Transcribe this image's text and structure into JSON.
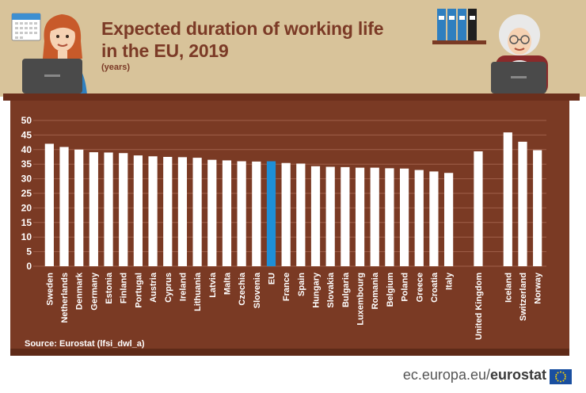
{
  "header": {
    "title": "Expected duration of working life in the EU, 2019",
    "subtitle": "(years)"
  },
  "source": "Source: Eurostat (lfsi_dwl_a)",
  "footer": {
    "site": "ec.europa.eu/",
    "brand": "eurostat"
  },
  "colors": {
    "bar": "#ffffff",
    "highlight": "#1e8fd6",
    "grid": "#a0604a",
    "axis_text": "#ffffff",
    "title": "#7b3a26"
  },
  "chart_data": {
    "type": "bar",
    "title": "Expected duration of working life in the EU, 2019",
    "ylabel": "(years)",
    "xlabel": "",
    "ylim": [
      0,
      50
    ],
    "yticks": [
      0,
      5,
      10,
      15,
      20,
      25,
      30,
      35,
      40,
      45,
      50
    ],
    "grid": true,
    "highlight_category": "EU",
    "gap_after": [
      "Italy",
      "United Kingdom"
    ],
    "categories": [
      "Sweden",
      "Netherlands",
      "Denmark",
      "Germany",
      "Estonia",
      "Finland",
      "Portugal",
      "Austria",
      "Cyprus",
      "Ireland",
      "Lithuania",
      "Latvia",
      "Malta",
      "Czechia",
      "Slovenia",
      "EU",
      "France",
      "Spain",
      "Hungary",
      "Slovakia",
      "Bulgaria",
      "Luxembourg",
      "Romania",
      "Belgium",
      "Poland",
      "Greece",
      "Croatia",
      "Italy",
      "United Kingdom",
      "Iceland",
      "Switzerland",
      "Norway"
    ],
    "values": [
      42.0,
      40.9,
      40.0,
      39.1,
      39.0,
      38.8,
      38.0,
      37.7,
      37.5,
      37.4,
      37.2,
      36.5,
      36.3,
      36.0,
      35.9,
      36.0,
      35.4,
      35.2,
      34.3,
      34.1,
      34.0,
      33.8,
      33.8,
      33.6,
      33.5,
      33.0,
      32.5,
      32.0,
      39.4,
      45.9,
      42.7,
      39.8
    ]
  }
}
